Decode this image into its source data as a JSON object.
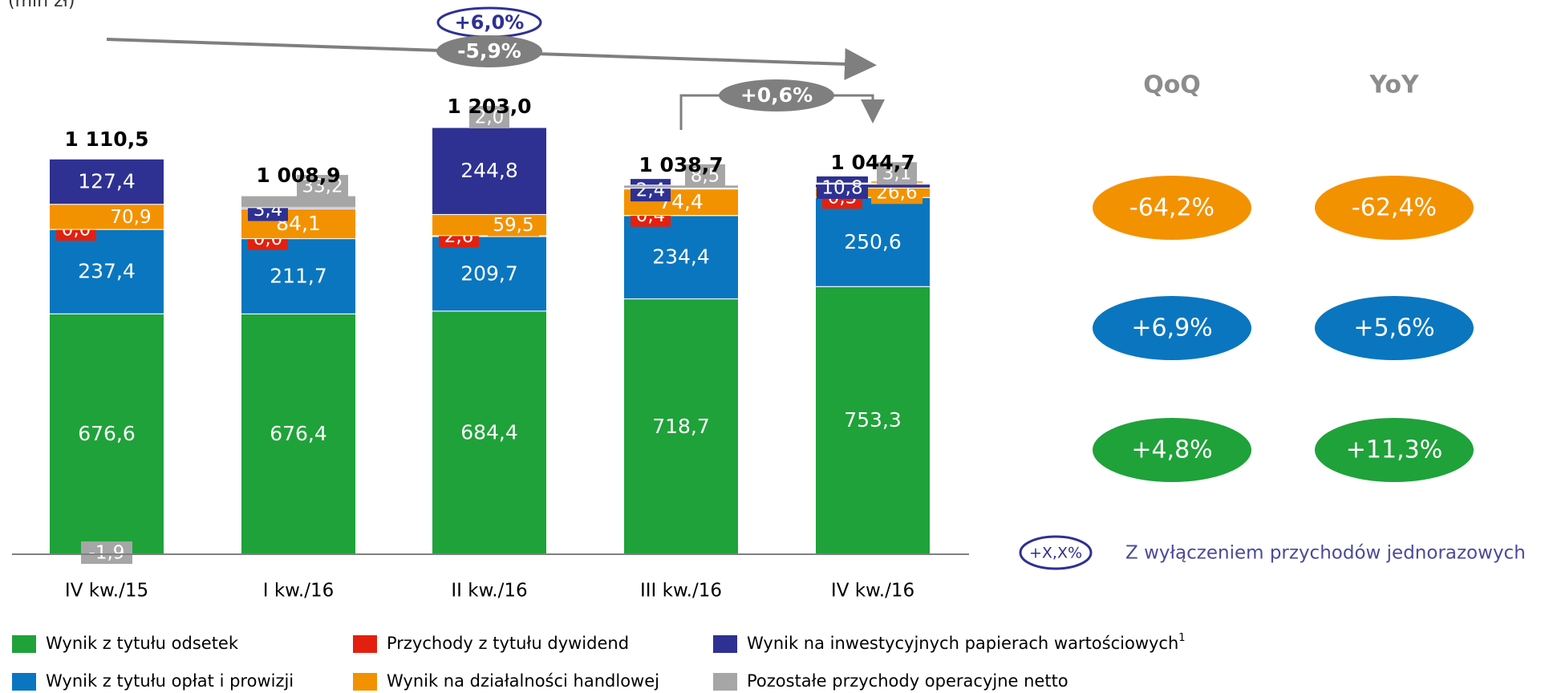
{
  "chart_data": {
    "type": "bar",
    "stacked": true,
    "y_label": "(mln zł)",
    "categories": [
      "IV kw./15",
      "I kw./16",
      "II kw./16",
      "III kw./16",
      "IV kw./16"
    ],
    "series": [
      {
        "name": "Wynik z tytułu odsetek",
        "color": "#1fa23a",
        "values": [
          676.6,
          676.4,
          684.4,
          718.7,
          753.3
        ],
        "value_labels": [
          "676,6",
          "676,4",
          "684,4",
          "718,7",
          "753,3"
        ]
      },
      {
        "name": "Wynik z tytułu opłat i prowizji",
        "color": "#0a76bf",
        "values": [
          237.4,
          211.7,
          209.7,
          234.4,
          250.6
        ],
        "value_labels": [
          "237,4",
          "211,7",
          "209,7",
          "234,4",
          "250,6"
        ]
      },
      {
        "name": "Przychody z tytułu dywidend",
        "color": "#e3200f",
        "values": [
          0.0,
          0.0,
          2.6,
          0.4,
          0.3
        ],
        "value_labels": [
          "0,0",
          "0,0",
          "2,6",
          "0,4",
          "0,3"
        ]
      },
      {
        "name": "Wynik na działalności handlowej",
        "color": "#f39200",
        "values": [
          70.9,
          84.1,
          59.5,
          74.4,
          26.6
        ],
        "value_labels": [
          "70,9",
          "84,1",
          "59,5",
          "74,4",
          "26,6"
        ]
      },
      {
        "name": "Wynik na inwestycyjnych papierach wartościowych",
        "name_sup": "1",
        "color": "#2e3192",
        "values": [
          127.4,
          3.4,
          244.8,
          2.4,
          10.8
        ],
        "value_labels": [
          "127,4",
          "3,4",
          "244,8",
          "2,4",
          "10,8"
        ]
      },
      {
        "name": "Pozostałe przychody operacyjne netto",
        "color": "#a6a6a6",
        "values": [
          -1.9,
          33.2,
          2.0,
          8.5,
          3.1
        ],
        "value_labels": [
          "-1,9",
          "33,2",
          "2,0",
          "8,5",
          "3,1"
        ]
      }
    ],
    "totals": [
      1110.5,
      1008.9,
      1203.0,
      1038.7,
      1044.7
    ],
    "total_labels": [
      "1 110,5",
      "1 008,9",
      "1 203,0",
      "1 038,7",
      "1 044,7"
    ],
    "annotations": {
      "yoy_adjusted": "+6,0%",
      "yoy": "-5,9%",
      "qoq": "+0,6%"
    },
    "panel": {
      "columns": [
        "QoQ",
        "YoY"
      ],
      "rows": [
        {
          "color": "#f39200",
          "values": [
            -64.2,
            -62.4
          ],
          "labels": [
            "-64,2%",
            "-62,4%"
          ]
        },
        {
          "color": "#0a76bf",
          "values": [
            6.9,
            5.6
          ],
          "labels": [
            "+6,9%",
            "+5,6%"
          ]
        },
        {
          "color": "#1fa23a",
          "values": [
            4.8,
            11.3
          ],
          "labels": [
            "+4,8%",
            "+11,3%"
          ]
        }
      ]
    },
    "note": {
      "marker": "+X,X%",
      "text": "Z wyłączeniem przychodów jednorazowych"
    }
  }
}
